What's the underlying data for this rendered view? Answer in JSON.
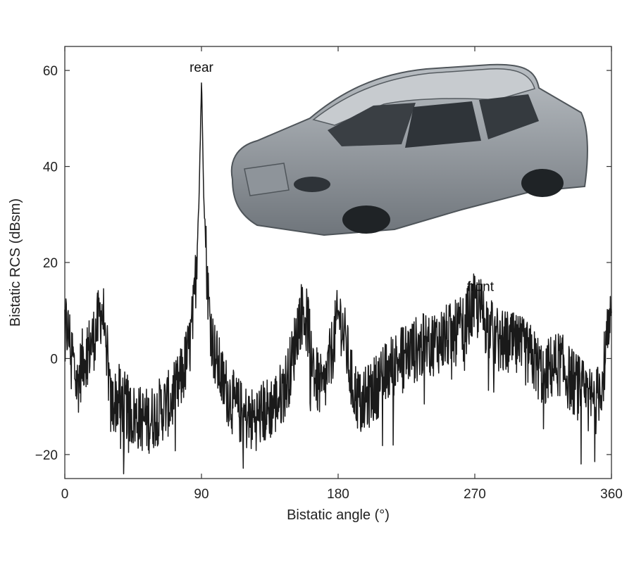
{
  "chart_data": {
    "type": "line",
    "title": "",
    "xlabel": "Bistatic angle (°)",
    "ylabel": "Bistatic RCS (dBsm)",
    "xlim": [
      0,
      360
    ],
    "ylim": [
      -25,
      65
    ],
    "xticks": [
      0,
      90,
      180,
      270,
      360
    ],
    "yticks": [
      -20,
      0,
      20,
      40,
      60
    ],
    "x_tick_labels": [
      "0",
      "90",
      "180",
      "270",
      "360"
    ],
    "y_tick_labels": [
      "−20",
      "0",
      "20",
      "40",
      "60"
    ],
    "grid": false,
    "legend": "none",
    "line_color": "#1a1a1a",
    "annotations": [
      {
        "text": "rear",
        "x": 90,
        "y": 58
      },
      {
        "text": "front",
        "x": 270,
        "y": 12
      }
    ],
    "series": [
      {
        "envelope": [
          [
            0,
            8
          ],
          [
            4,
            3
          ],
          [
            8,
            -6
          ],
          [
            12,
            0
          ],
          [
            16,
            2
          ],
          [
            20,
            5
          ],
          [
            24,
            10
          ],
          [
            27,
            7
          ],
          [
            30,
            -10
          ],
          [
            36,
            -8
          ],
          [
            45,
            -12
          ],
          [
            55,
            -13
          ],
          [
            62,
            -11
          ],
          [
            70,
            -9
          ],
          [
            76,
            -5
          ],
          [
            82,
            2
          ],
          [
            85,
            10
          ],
          [
            87,
            22
          ],
          [
            88.5,
            35
          ],
          [
            89.5,
            50
          ],
          [
            90,
            58
          ],
          [
            90.5,
            50
          ],
          [
            91.5,
            35
          ],
          [
            93,
            22
          ],
          [
            95,
            10
          ],
          [
            98,
            2
          ],
          [
            104,
            -5
          ],
          [
            112,
            -10
          ],
          [
            122,
            -13
          ],
          [
            132,
            -11
          ],
          [
            140,
            -9
          ],
          [
            146,
            -5
          ],
          [
            150,
            0
          ],
          [
            154,
            8
          ],
          [
            157,
            10
          ],
          [
            161,
            6
          ],
          [
            165,
            -4
          ],
          [
            170,
            -7
          ],
          [
            175,
            0
          ],
          [
            179,
            7
          ],
          [
            181,
            9
          ],
          [
            185,
            3
          ],
          [
            189,
            -5
          ],
          [
            195,
            -10
          ],
          [
            202,
            -7
          ],
          [
            210,
            -4
          ],
          [
            217,
            -1
          ],
          [
            225,
            1
          ],
          [
            232,
            2
          ],
          [
            240,
            3
          ],
          [
            248,
            4
          ],
          [
            256,
            5
          ],
          [
            262,
            6
          ],
          [
            266,
            9
          ],
          [
            270,
            11
          ],
          [
            274,
            10
          ],
          [
            278,
            7
          ],
          [
            284,
            4
          ],
          [
            292,
            3
          ],
          [
            300,
            2
          ],
          [
            308,
            0
          ],
          [
            314,
            -3
          ],
          [
            320,
            -2
          ],
          [
            326,
            -1
          ],
          [
            332,
            -4
          ],
          [
            338,
            -6
          ],
          [
            344,
            -8
          ],
          [
            350,
            -9
          ],
          [
            354,
            -4
          ],
          [
            357,
            3
          ],
          [
            360,
            7
          ]
        ]
      }
    ]
  }
}
